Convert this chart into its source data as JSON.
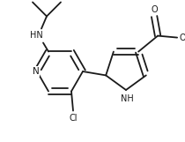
{
  "bg_color": "#ffffff",
  "line_color": "#1a1a1a",
  "line_width": 1.3,
  "font_size": 7.0,
  "fig_width": 2.1,
  "fig_height": 1.61,
  "dpi": 100,
  "xlim": [
    0,
    210
  ],
  "ylim": [
    0,
    161
  ]
}
